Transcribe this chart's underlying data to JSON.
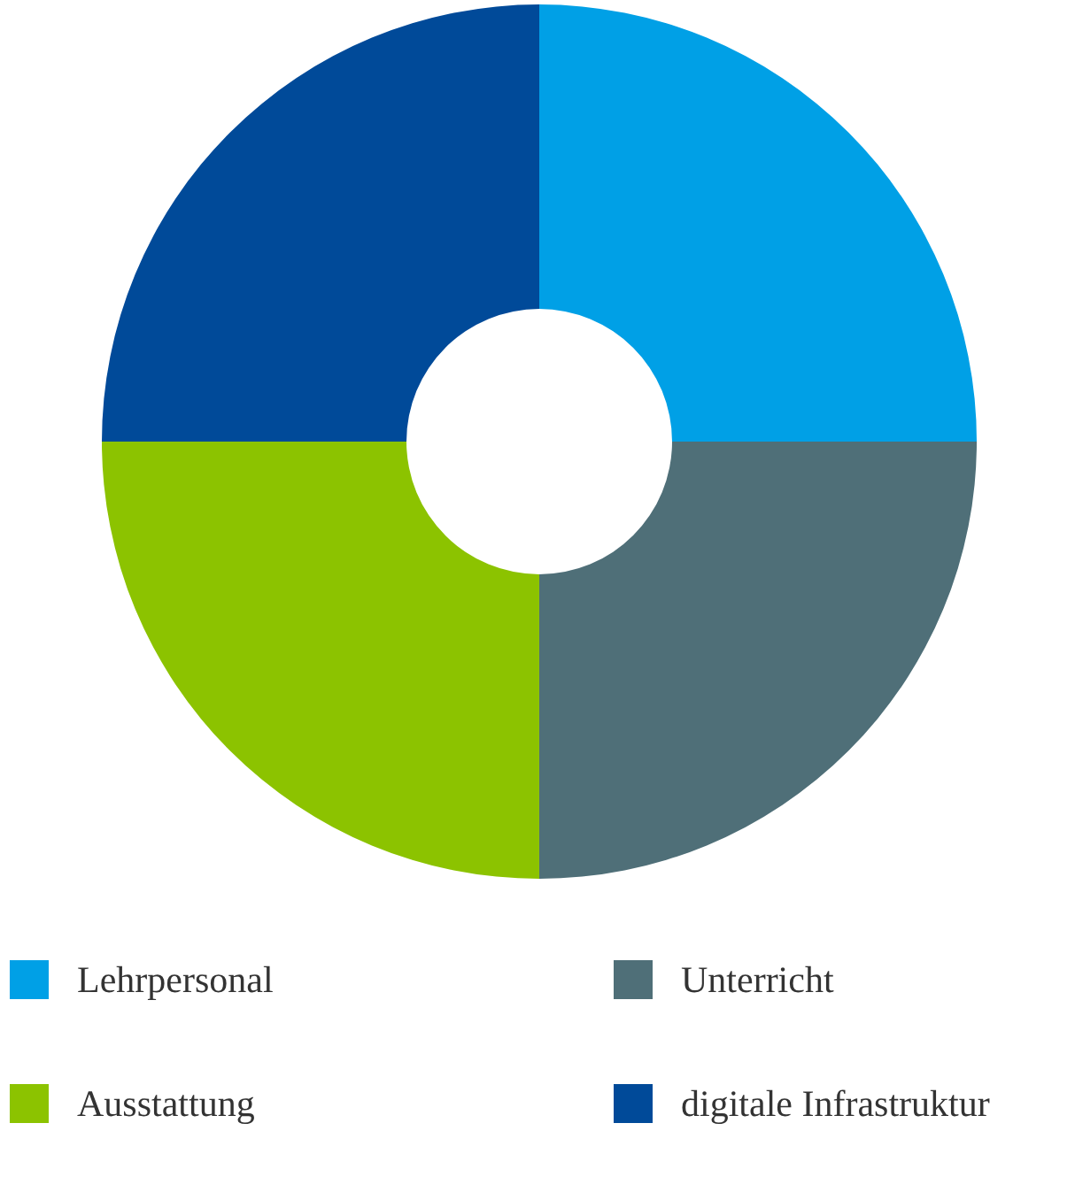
{
  "chart_data": {
    "type": "donut",
    "categories": [
      "Lehrpersonal",
      "Unterricht",
      "Ausstattung",
      "digitale Infrastruktur"
    ],
    "values": [
      25,
      25,
      25,
      25
    ],
    "colors": [
      "#00a0e6",
      "#4f6f78",
      "#8cc300",
      "#004a99"
    ],
    "legend": "bottom"
  }
}
